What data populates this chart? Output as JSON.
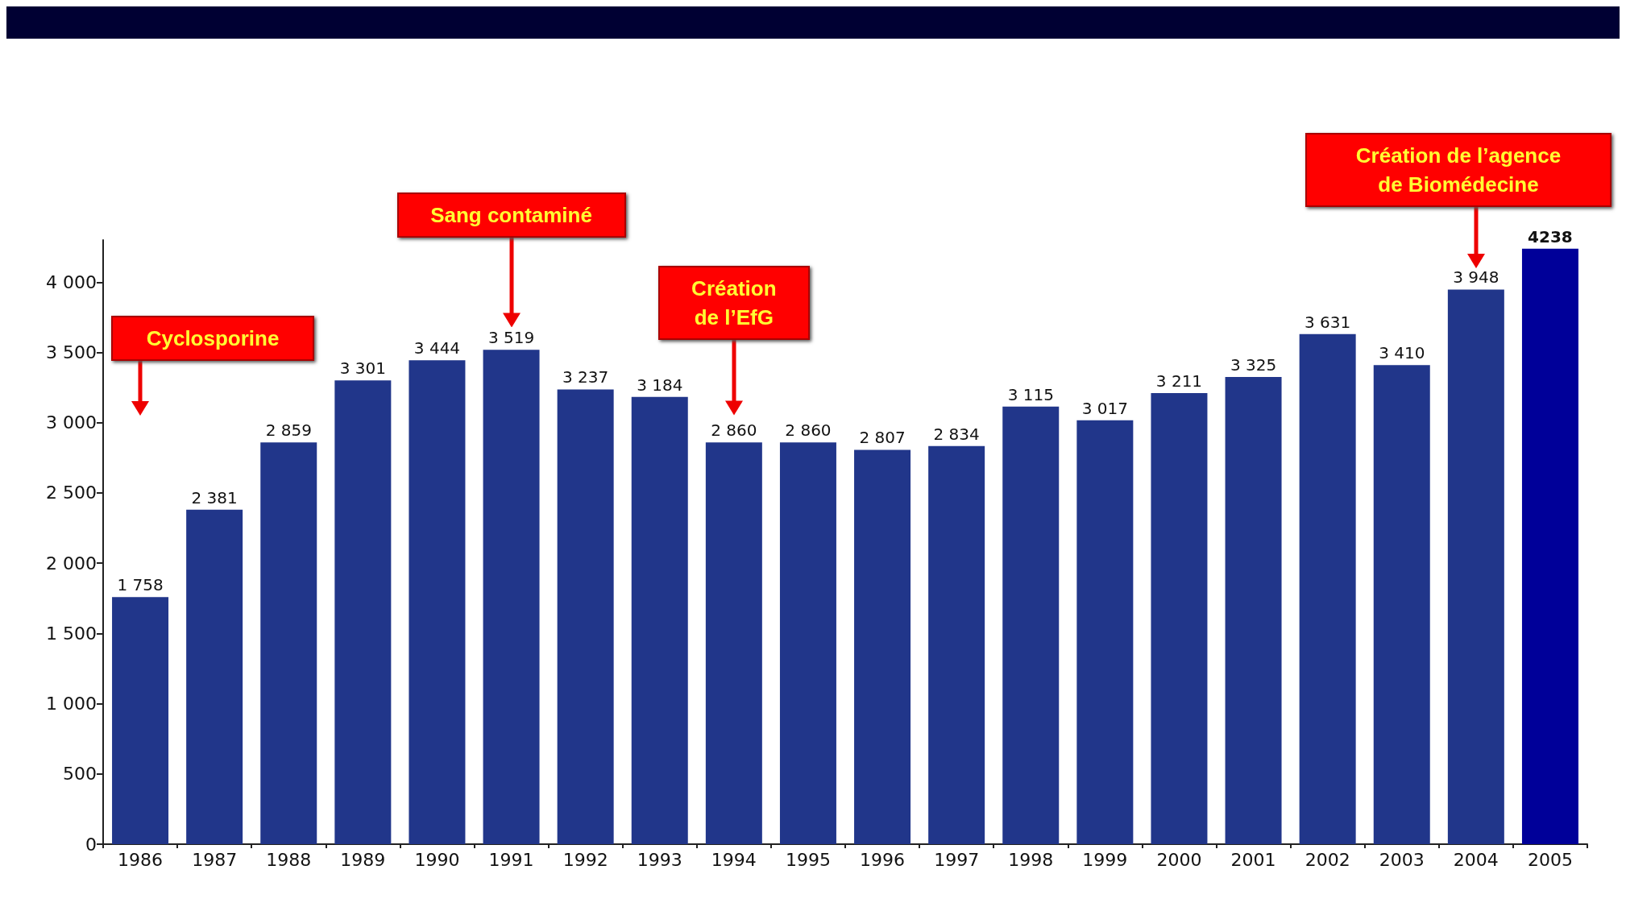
{
  "chart_data": {
    "type": "bar",
    "categories": [
      "1986",
      "1987",
      "1988",
      "1989",
      "1990",
      "1991",
      "1992",
      "1993",
      "1994",
      "1995",
      "1996",
      "1997",
      "1998",
      "1999",
      "2000",
      "2001",
      "2002",
      "2003",
      "2004",
      "2005"
    ],
    "values": [
      1758,
      2381,
      2859,
      3301,
      3444,
      3519,
      3237,
      3184,
      2860,
      2860,
      2807,
      2834,
      3115,
      3017,
      3211,
      3325,
      3631,
      3410,
      3948,
      4238
    ],
    "colors": [
      "#21368a",
      "#21368a",
      "#21368a",
      "#21368a",
      "#21368a",
      "#21368a",
      "#21368a",
      "#21368a",
      "#21368a",
      "#21368a",
      "#21368a",
      "#21368a",
      "#21368a",
      "#21368a",
      "#21368a",
      "#21368a",
      "#21368a",
      "#21368a",
      "#21368a",
      "#000099"
    ],
    "value_labels": [
      "1 758",
      "2 381",
      "2 859",
      "3 301",
      "3 444",
      "3 519",
      "3 237",
      "3 184",
      "2 860",
      "2 860",
      "2 807",
      "2 834",
      "3 115",
      "3 017",
      "3 211",
      "3 325",
      "3 631",
      "3 410",
      "3 948",
      "4238"
    ],
    "ylim": [
      0,
      4300
    ],
    "yticks": [
      0,
      500,
      {
        "value": 1000,
        "label": "1 000"
      },
      {
        "value": 1500,
        "label": "1 500"
      },
      {
        "value": 2000,
        "label": "2 000"
      },
      {
        "value": 2500,
        "label": "2 500"
      },
      {
        "value": 3000,
        "label": "3 000"
      },
      {
        "value": 3500,
        "label": "3 500"
      },
      {
        "value": 4000,
        "label": "4 000"
      }
    ],
    "grid": false,
    "annotations": [
      "Cyclosporine",
      "Sang contaminé",
      "Création\nde l’EfG",
      "Création de l’agence\nde Biomédecine"
    ]
  }
}
